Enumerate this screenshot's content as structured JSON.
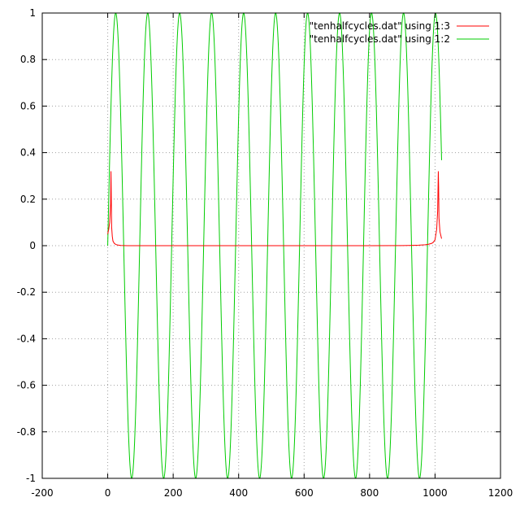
{
  "chart_data": {
    "type": "line",
    "title": "",
    "xlabel": "",
    "ylabel": "",
    "xlim": [
      -200,
      1200
    ],
    "ylim": [
      -1,
      1
    ],
    "xticks": [
      -200,
      0,
      200,
      400,
      600,
      800,
      1000,
      1200
    ],
    "xtick_labels": [
      "-200",
      "0",
      "200",
      "400",
      "600",
      "800",
      "1000",
      "1200"
    ],
    "yticks": [
      -1,
      -0.8,
      -0.6,
      -0.4,
      -0.2,
      0,
      0.2,
      0.4,
      0.6,
      0.8,
      1
    ],
    "ytick_labels": [
      "-1",
      "-0.8",
      "-0.6",
      "-0.4",
      "-0.2",
      "0",
      "0.2",
      "0.4",
      "0.6",
      "0.8",
      "1"
    ],
    "grid": true,
    "legend_position": "top-right",
    "series": [
      {
        "name": "\"tenhalfcycles.dat\" using 1:3",
        "color": "#ff0000",
        "x": [
          0,
          3,
          6,
          9,
          10,
          11,
          12,
          14,
          16,
          20,
          25,
          30,
          40,
          50,
          60,
          80,
          100,
          200,
          300,
          400,
          500,
          600,
          700,
          800,
          900,
          950,
          970,
          980,
          990,
          995,
          1000,
          1005,
          1008,
          1010,
          1011,
          1012,
          1015,
          1020
        ],
        "values": [
          0.05,
          0.07,
          0.1,
          0.18,
          0.32,
          0.2,
          0.08,
          0.04,
          0.02,
          0.01,
          0.005,
          0.003,
          0.001,
          0.0005,
          0.0002,
          0.0001,
          0,
          0,
          0,
          0,
          0,
          0,
          0,
          0,
          0.0005,
          0.002,
          0.004,
          0.006,
          0.01,
          0.015,
          0.025,
          0.07,
          0.15,
          0.32,
          0.25,
          0.12,
          0.06,
          0.03
        ]
      },
      {
        "name": "\"tenhalfcycles.dat\" using 1:2",
        "color": "#00cc00",
        "function": "sin",
        "x_start": 0,
        "x_end": 1020,
        "period": 97.7,
        "amplitude": 1
      }
    ]
  }
}
